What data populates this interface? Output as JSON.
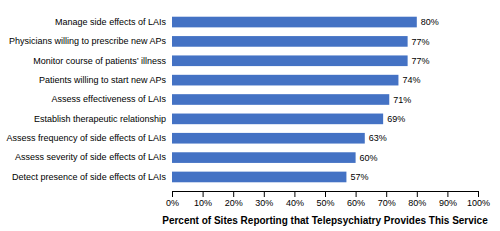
{
  "chart_data": {
    "type": "bar",
    "orientation": "horizontal",
    "categories": [
      "Detect presence of side effects of LAIs",
      "Assess severity of side effects of LAIs",
      "Assess frequency of side effects of LAIs",
      "Establish therapeutic relationship",
      "Assess effectiveness of LAIs",
      "Patients willing to start new APs",
      "Monitor course of patients’ illness",
      "Physicians willing to prescribe new APs",
      "Manage side effects of LAIs"
    ],
    "values": [
      57,
      60,
      63,
      69,
      71,
      74,
      77,
      77,
      80
    ],
    "value_labels": [
      "57%",
      "60%",
      "63%",
      "69%",
      "71%",
      "74%",
      "77%",
      "77%",
      "80%"
    ],
    "data_labels": true,
    "color": "#4472C4",
    "xlabel": "Percent of Sites Reporting that Telepsychiatry Provides This Service",
    "xlim": [
      0,
      100
    ],
    "xticks": [
      {
        "value": 0,
        "label": "0%"
      },
      {
        "value": 10,
        "label": "10%"
      },
      {
        "value": 20,
        "label": "20%"
      },
      {
        "value": 30,
        "label": "30%"
      },
      {
        "value": 40,
        "label": "40%"
      },
      {
        "value": 50,
        "label": "50%"
      },
      {
        "value": 60,
        "label": "60%"
      },
      {
        "value": 70,
        "label": "70%"
      },
      {
        "value": 80,
        "label": "80%"
      },
      {
        "value": 90,
        "label": "90%"
      },
      {
        "value": 100,
        "label": "100%"
      }
    ],
    "grid": false
  }
}
